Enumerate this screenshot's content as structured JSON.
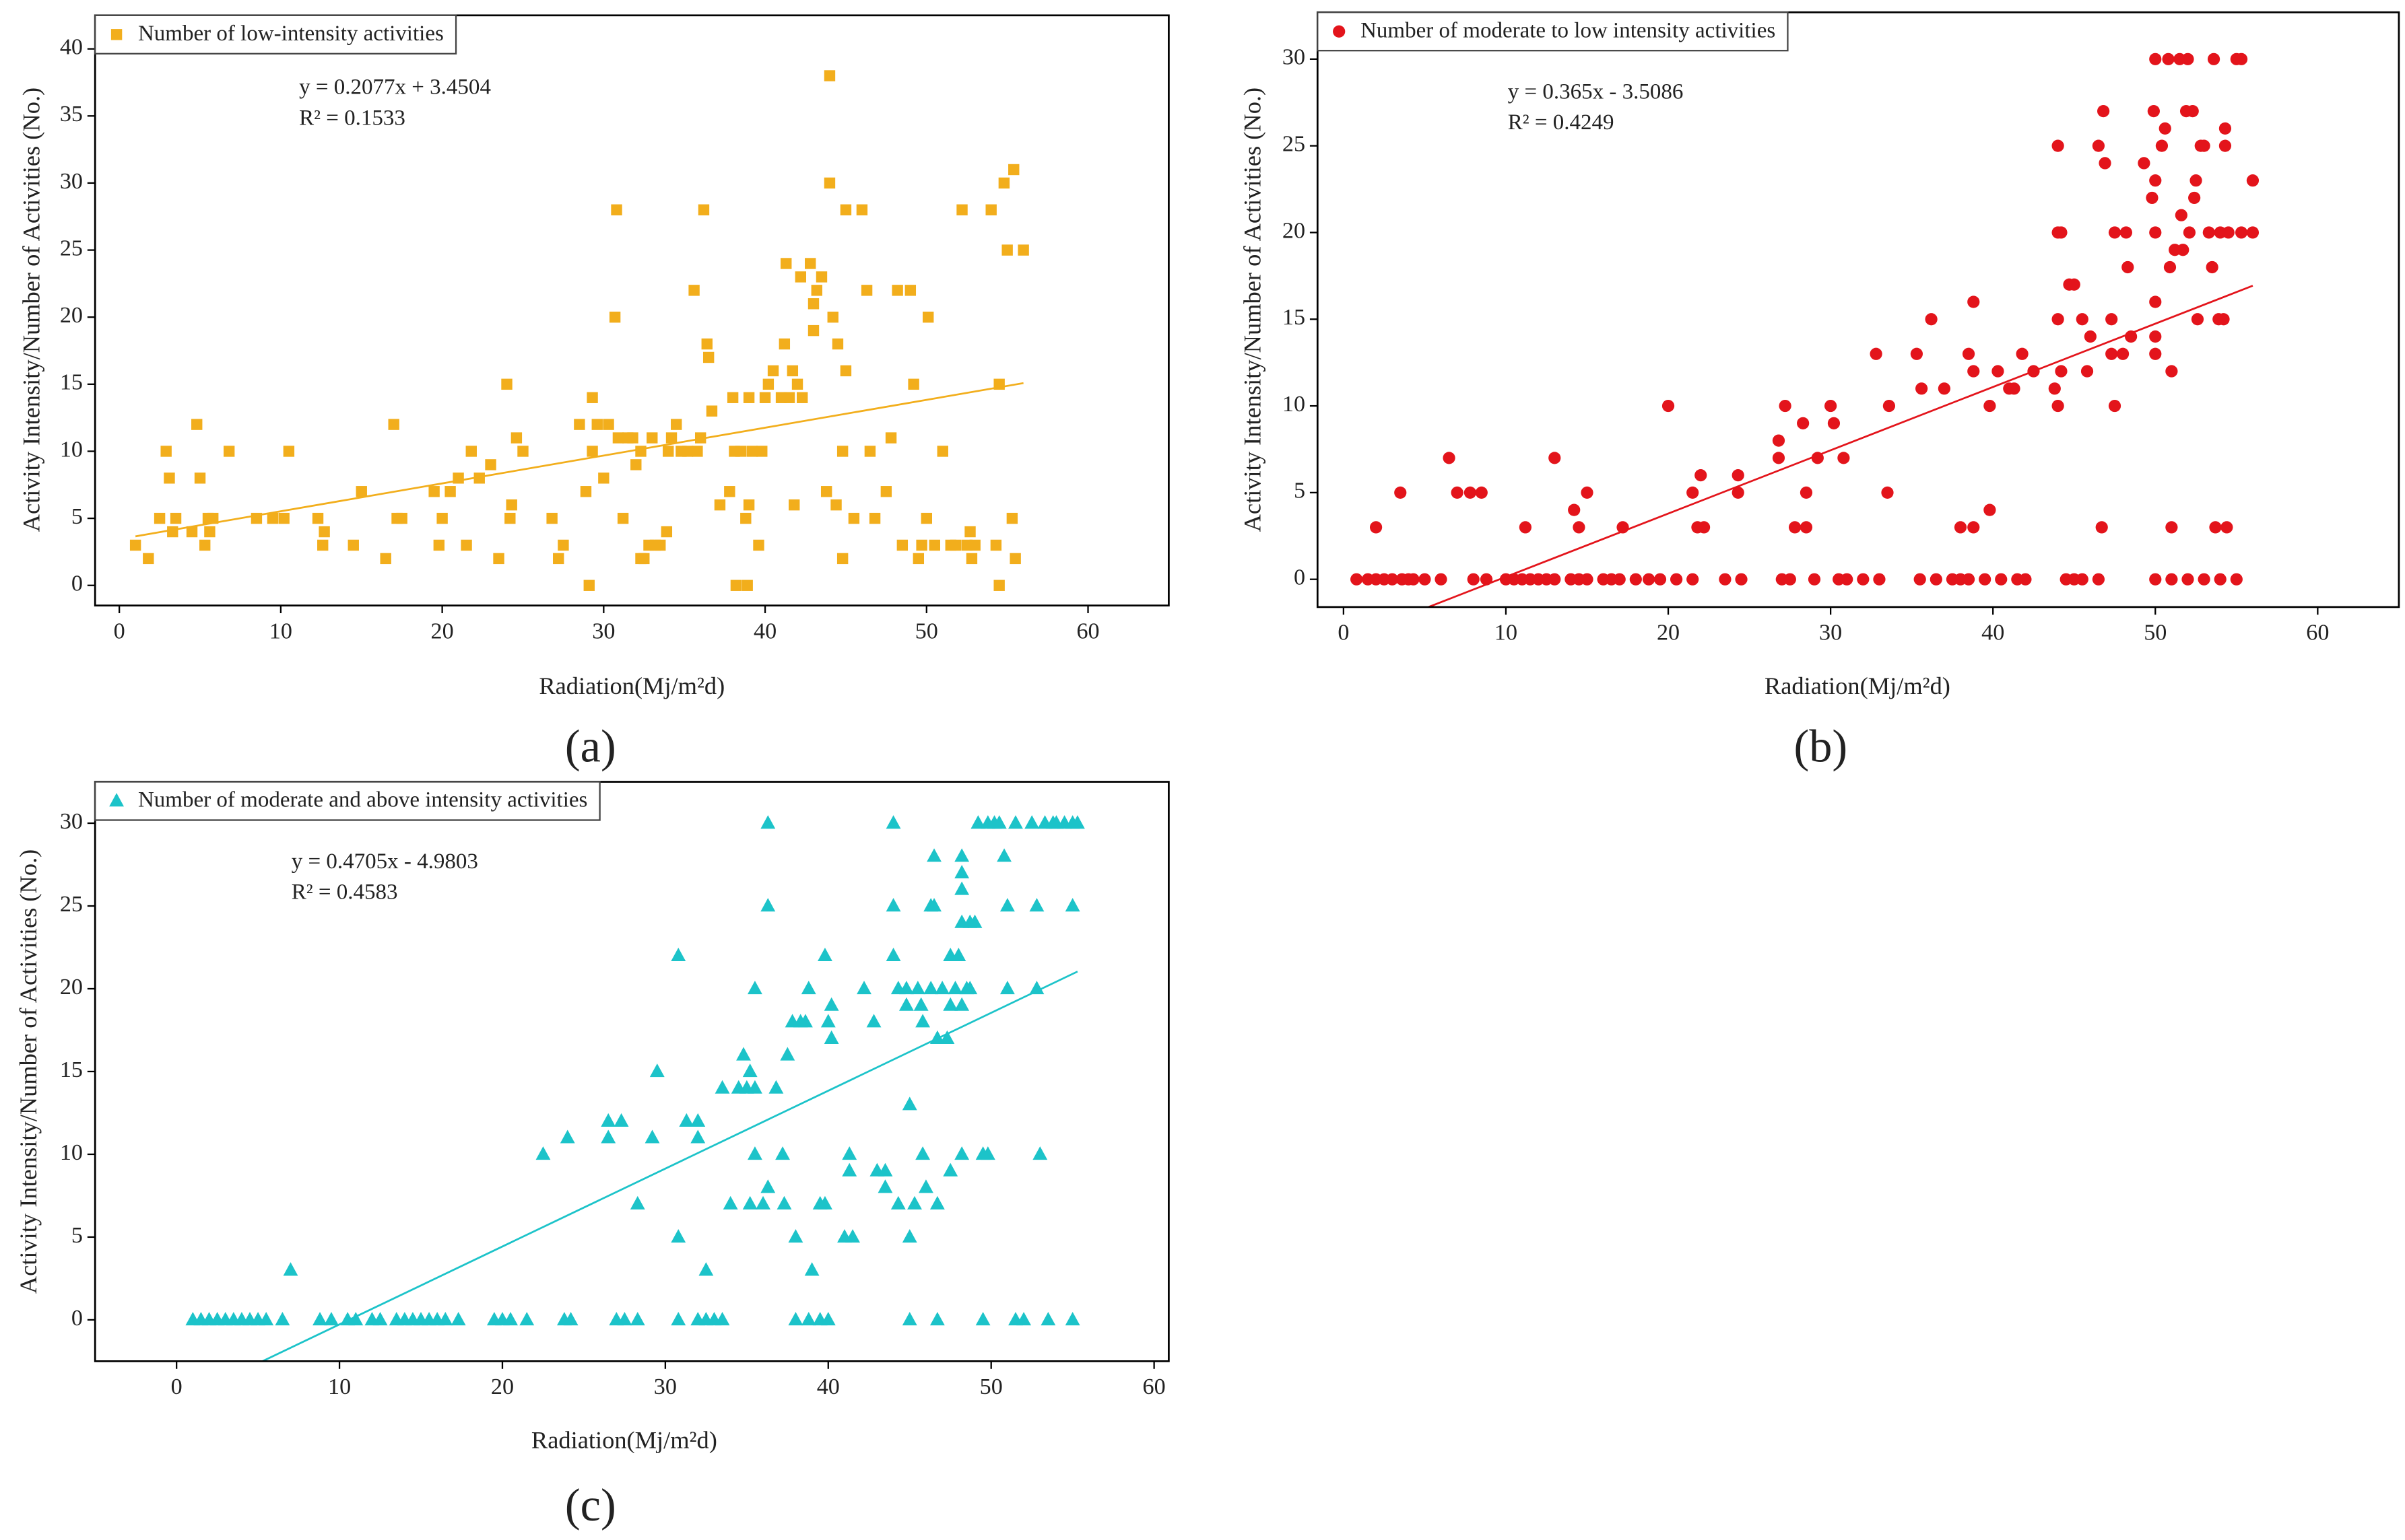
{
  "chart_data": [
    {
      "type": "scatter",
      "panel_label": "(a)",
      "legend": "upper left",
      "xlabel": "Radiation(Mj/m²d)",
      "ylabel": "Activity Intensity/Number of Activities (No.)",
      "xlim": [
        -1.5,
        65
      ],
      "ylim": [
        -1.5,
        42.5
      ],
      "xticks": [
        0,
        10,
        20,
        30,
        40,
        50,
        60
      ],
      "yticks": [
        0,
        5,
        10,
        15,
        20,
        25,
        30,
        35,
        40
      ],
      "series": [
        {
          "name": "Number of low-intensity activities",
          "color": "#f2ae1c",
          "marker": "square",
          "x": [
            1,
            1.8,
            2.5,
            2.9,
            3.1,
            3.3,
            3.5,
            4.5,
            4.8,
            5,
            5.3,
            5.5,
            5.6,
            5.8,
            6.8,
            8.5,
            9.5,
            10.2,
            10.5,
            12.3,
            12.6,
            12.7,
            14.5,
            15,
            16.5,
            17,
            17.2,
            17.5,
            19.5,
            19.8,
            20,
            20.5,
            21,
            21.5,
            21.8,
            22.3,
            23,
            23.5,
            24,
            24.2,
            24.3,
            24.6,
            25,
            26.8,
            27.2,
            27.5,
            28.5,
            28.9,
            29.1,
            29.3,
            29.3,
            29.6,
            30,
            30.3,
            30.7,
            30.8,
            30.9,
            31.2,
            31.5,
            31.8,
            32,
            32.3,
            32.3,
            32.5,
            32.8,
            33,
            33.2,
            33.5,
            33.9,
            34,
            34.2,
            34.5,
            34.8,
            35.2,
            35.6,
            35.8,
            36,
            36.2,
            36.4,
            36.5,
            36.7,
            37.2,
            37.8,
            38,
            38.1,
            38.2,
            38.5,
            38.8,
            38.9,
            39,
            39,
            39.2,
            39.6,
            39.8,
            40,
            40.2,
            40.5,
            41,
            41.3,
            41.2,
            41.5,
            41.7,
            41.8,
            42,
            42.2,
            42.3,
            42.8,
            43,
            43,
            43.2,
            43.5,
            43.8,
            44,
            44,
            44.2,
            44.4,
            44.5,
            44.8,
            44.8,
            45,
            45,
            45.5,
            46,
            46.3,
            46.5,
            46.8,
            47.5,
            47.8,
            48.2,
            48.5,
            49,
            49.2,
            49.5,
            49.7,
            50,
            50.1,
            50.5,
            51,
            51.5,
            51.8,
            52.2,
            52.5,
            52.7,
            52.8,
            53,
            54,
            54.3,
            54.5,
            54.5,
            54.8,
            55,
            55.3,
            55.4,
            55.5,
            56
          ],
          "values": [
            3,
            2,
            5,
            10,
            8,
            4,
            5,
            4,
            12,
            8,
            3,
            5,
            4,
            5,
            10,
            5,
            5,
            5,
            10,
            5,
            3,
            4,
            3,
            7,
            2,
            12,
            5,
            5,
            7,
            3,
            5,
            7,
            8,
            3,
            10,
            8,
            9,
            2,
            15,
            5,
            6,
            11,
            10,
            5,
            2,
            3,
            12,
            7,
            0,
            14,
            10,
            12,
            8,
            12,
            20,
            28,
            11,
            5,
            11,
            11,
            9,
            10,
            2,
            2,
            3,
            11,
            3,
            3,
            4,
            10,
            11,
            12,
            10,
            10,
            22,
            10,
            11,
            28,
            18,
            17,
            13,
            6,
            7,
            14,
            10,
            0,
            10,
            5,
            0,
            14,
            6,
            10,
            3,
            10,
            14,
            15,
            16,
            14,
            24,
            18,
            14,
            16,
            6,
            15,
            23,
            14,
            24,
            21,
            19,
            22,
            23,
            7,
            38,
            30,
            20,
            6,
            18,
            10,
            2,
            28,
            16,
            5,
            28,
            22,
            10,
            5,
            7,
            11,
            22,
            3,
            22,
            15,
            2,
            3,
            5,
            20,
            3,
            10,
            3,
            3,
            28,
            3,
            4,
            2,
            3,
            28,
            3,
            15,
            0,
            30,
            25,
            5,
            31,
            2,
            25
          ]
        }
      ],
      "fit": {
        "equation": "y = 0.2077x + 3.4504",
        "r2": "R² = 0.1533",
        "slope": 0.2077,
        "intercept": 3.4504,
        "x_range": [
          1,
          56
        ]
      }
    },
    {
      "type": "scatter",
      "panel_label": "(b)",
      "legend": "upper left",
      "xlabel": "Radiation(Mj/m²d)",
      "ylabel": "Activity Intensity/Number of Activities (No.)",
      "xlim": [
        -1.6,
        65
      ],
      "ylim": [
        -1.6,
        32.7
      ],
      "xticks": [
        0,
        10,
        20,
        30,
        40,
        50,
        60
      ],
      "yticks": [
        0,
        5,
        10,
        15,
        20,
        25,
        30
      ],
      "series": [
        {
          "name": "Number of moderate to low intensity activities",
          "color": "#e3141b",
          "marker": "circle",
          "x": [
            0.8,
            1.5,
            2,
            2.5,
            3,
            3.6,
            4,
            4.3,
            5,
            6,
            8,
            8.8,
            10,
            10.5,
            11,
            11.5,
            12,
            12.5,
            13,
            14,
            14.5,
            15,
            16,
            16.5,
            17,
            18,
            18.8,
            19.5,
            20.5,
            21.5,
            23.5,
            24.5,
            27,
            27.5,
            29,
            30.5,
            31,
            32,
            33,
            35.5,
            36.5,
            37.5,
            38,
            38.5,
            39.5,
            40.5,
            41.5,
            42,
            44.5,
            45,
            45.5,
            46.5,
            50,
            51,
            52,
            53,
            54,
            55,
            2,
            3.5,
            6.5,
            7,
            7.8,
            8.5,
            11.2,
            13,
            14.2,
            14.5,
            15,
            17.2,
            20,
            21.5,
            21.8,
            22,
            22.2,
            24.3,
            24.3,
            26.8,
            26.8,
            27.2,
            27.8,
            28.3,
            28.5,
            28.5,
            29.2,
            30,
            30.2,
            30.8,
            32.8,
            33.5,
            33.6,
            35.3,
            35.6,
            36.2,
            37,
            38,
            38.5,
            38.8,
            38.8,
            38.8,
            39.8,
            39.8,
            40.3,
            41,
            41.3,
            41.8,
            42.5,
            43.8,
            44,
            44,
            44,
            44.2,
            44,
            44.2,
            44.7,
            45,
            45.5,
            45.8,
            46,
            46.5,
            46.7,
            46.8,
            46.9,
            47.3,
            47.5,
            47.3,
            47.5,
            48,
            48.2,
            48.3,
            48.5,
            49.3,
            49.8,
            49.9,
            50,
            50,
            50,
            50,
            50,
            50,
            50.4,
            50.6,
            50.8,
            50.9,
            51,
            51,
            51.2,
            51.5,
            51.6,
            51.7,
            51.9,
            52,
            52.1,
            52.3,
            52.4,
            52.5,
            52.6,
            52.8,
            53,
            53.3,
            53.5,
            53.6,
            53.7,
            53.9,
            54,
            54.2,
            54.3,
            54.3,
            54.4,
            54.5,
            55,
            55.3,
            55.3,
            56,
            56
          ],
          "values": [
            0,
            0,
            0,
            0,
            0,
            0,
            0,
            0,
            0,
            0,
            0,
            0,
            0,
            0,
            0,
            0,
            0,
            0,
            0,
            0,
            0,
            0,
            0,
            0,
            0,
            0,
            0,
            0,
            0,
            0,
            0,
            0,
            0,
            0,
            0,
            0,
            0,
            0,
            0,
            0,
            0,
            0,
            0,
            0,
            0,
            0,
            0,
            0,
            0,
            0,
            0,
            0,
            0,
            0,
            0,
            0,
            0,
            0,
            3,
            5,
            7,
            5,
            5,
            5,
            3,
            7,
            4,
            3,
            5,
            3,
            10,
            5,
            3,
            6,
            3,
            6,
            5,
            8,
            7,
            10,
            3,
            9,
            5,
            3,
            7,
            10,
            9,
            7,
            13,
            5,
            10,
            13,
            11,
            15,
            11,
            3,
            13,
            3,
            16,
            12,
            10,
            4,
            12,
            11,
            11,
            13,
            12,
            11,
            25,
            20,
            15,
            12,
            10,
            20,
            17,
            17,
            15,
            12,
            14,
            25,
            3,
            27,
            24,
            15,
            20,
            13,
            10,
            13,
            20,
            18,
            14,
            24,
            22,
            27,
            30,
            23,
            20,
            16,
            14,
            13,
            25,
            26,
            30,
            18,
            12,
            3,
            19,
            30,
            21,
            19,
            27,
            30,
            20,
            27,
            22,
            23,
            15,
            25,
            25,
            20,
            18,
            30,
            3,
            15,
            20,
            15,
            25,
            26,
            3,
            20,
            30,
            30,
            20,
            23,
            20
          ]
        }
      ],
      "fit": {
        "equation": "y = 0.365x - 3.5086",
        "r2": "R² = 0.4249",
        "slope": 0.365,
        "intercept": -3.5086,
        "x_range": [
          1,
          56
        ]
      }
    },
    {
      "type": "scatter",
      "panel_label": "(c)",
      "legend": "upper left",
      "xlabel": "Radiation(Mj/m²d)",
      "ylabel": "Activity Intensity/Number of Activities (No.)",
      "xlim": [
        -5,
        60.9
      ],
      "ylim": [
        -2.5,
        32.5
      ],
      "xticks": [
        0,
        10,
        20,
        30,
        40,
        50,
        60
      ],
      "yticks": [
        0,
        5,
        10,
        15,
        20,
        25,
        30
      ],
      "series": [
        {
          "name": "Number of moderate and above intensity activities",
          "color": "#1cc3c9",
          "marker": "triangle",
          "x": [
            1,
            1.5,
            2,
            2.5,
            3,
            3.5,
            4,
            4.5,
            5,
            5.5,
            6.5,
            8.8,
            9.5,
            10.5,
            11,
            12,
            12.5,
            13.5,
            14,
            14.5,
            15,
            15.5,
            16,
            16.5,
            17.3,
            19.5,
            20,
            20.5,
            21.5,
            23.8,
            24.2,
            27,
            27.5,
            28.3,
            30.8,
            32,
            32.5,
            33,
            33.5,
            38,
            38.8,
            39.5,
            40,
            45,
            46.7,
            49.5,
            51.5,
            52,
            53.5,
            55,
            7,
            22.5,
            24,
            26.5,
            26.5,
            27.3,
            28.3,
            29.2,
            29.5,
            30.8,
            30.8,
            31.3,
            32,
            32,
            32.5,
            33.5,
            34,
            34.5,
            34.8,
            35,
            35.2,
            35.2,
            35.5,
            35.5,
            35.5,
            36,
            36.3,
            36.3,
            36.3,
            36.8,
            37.2,
            37.3,
            37.5,
            37.8,
            38,
            38.3,
            38.6,
            38.8,
            39,
            39.5,
            39.8,
            39.8,
            40,
            40.2,
            40.2,
            41,
            41.3,
            41.3,
            41.5,
            42.2,
            42.8,
            43,
            43.5,
            43.5,
            44,
            44,
            44,
            44.3,
            44.3,
            44.8,
            44.8,
            45,
            45,
            45.3,
            45.5,
            45.7,
            45.8,
            45.8,
            46,
            46.3,
            46.3,
            46.5,
            46.5,
            46.7,
            46.7,
            47,
            47.3,
            47.5,
            47.5,
            47.5,
            47.8,
            48,
            48.2,
            48.2,
            48.2,
            48.2,
            48.2,
            48.2,
            48.5,
            48.7,
            48.7,
            49,
            49.2,
            49.5,
            49.8,
            49.8,
            50.2,
            50.5,
            50.8,
            51,
            51,
            51.5,
            52.5,
            52.8,
            52.8,
            53,
            53.3,
            53.8,
            54,
            54.5,
            55,
            55,
            55.3
          ],
          "values": [
            0,
            0,
            0,
            0,
            0,
            0,
            0,
            0,
            0,
            0,
            0,
            0,
            0,
            0,
            0,
            0,
            0,
            0,
            0,
            0,
            0,
            0,
            0,
            0,
            0,
            0,
            0,
            0,
            0,
            0,
            0,
            0,
            0,
            0,
            0,
            0,
            0,
            0,
            0,
            0,
            0,
            0,
            0,
            0,
            0,
            0,
            0,
            0,
            0,
            0,
            3,
            10,
            11,
            11,
            12,
            12,
            7,
            11,
            15,
            22,
            5,
            12,
            12,
            11,
            3,
            14,
            7,
            14,
            16,
            14,
            15,
            7,
            20,
            14,
            10,
            7,
            30,
            25,
            8,
            14,
            10,
            7,
            16,
            18,
            5,
            18,
            18,
            20,
            3,
            7,
            22,
            7,
            18,
            19,
            17,
            5,
            10,
            9,
            5,
            20,
            18,
            9,
            8,
            9,
            30,
            25,
            22,
            20,
            7,
            20,
            19,
            13,
            5,
            7,
            20,
            19,
            18,
            10,
            8,
            25,
            20,
            28,
            25,
            17,
            7,
            20,
            17,
            22,
            19,
            9,
            20,
            22,
            28,
            27,
            26,
            24,
            19,
            10,
            20,
            24,
            20,
            24,
            30,
            10,
            30,
            10,
            30,
            30,
            28,
            20,
            25,
            30,
            30,
            25,
            20,
            10,
            30,
            30,
            30,
            30,
            30,
            25,
            30
          ]
        }
      ],
      "fit": {
        "equation": "y = 0.4705x - 4.9803",
        "r2": "R² = 0.4583",
        "slope": 0.4705,
        "intercept": -4.9803,
        "x_range": [
          1,
          55.3
        ]
      }
    }
  ]
}
